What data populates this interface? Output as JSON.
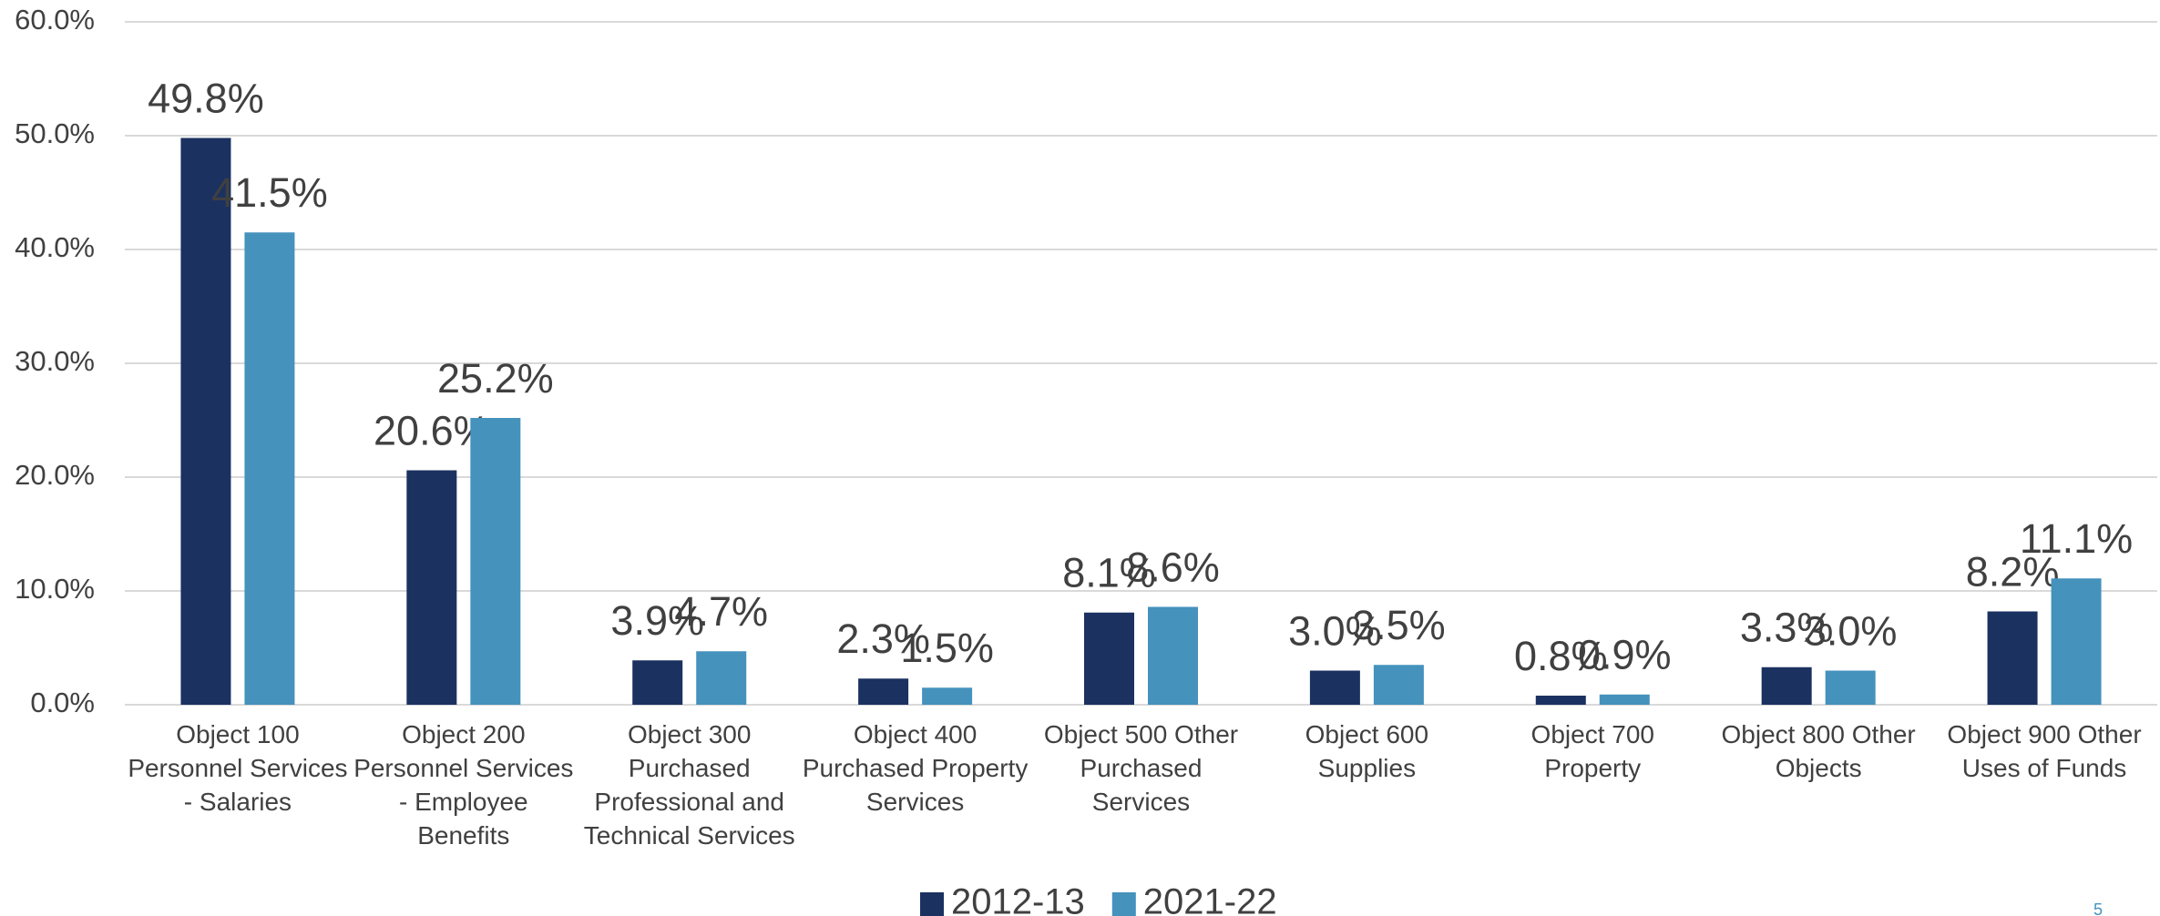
{
  "chart_data": {
    "type": "bar",
    "categories": [
      "Object 100 Personnel Services - Salaries",
      "Object 200 Personnel Services - Employee Benefits",
      "Object 300 Purchased Professional and Technical Services",
      "Object 400 Purchased Property Services",
      "Object 500 Other Purchased Services",
      "Object 600 Supplies",
      "Object 700 Property",
      "Object 800 Other Objects",
      "Object 900 Other Uses of Funds"
    ],
    "series": [
      {
        "name": "2012-13",
        "color": "#1b3160",
        "values": [
          49.8,
          20.6,
          3.9,
          2.3,
          8.1,
          3.0,
          0.8,
          3.3,
          8.2
        ],
        "value_labels": [
          "49.8%",
          "20.6%",
          "3.9%",
          "2.3%",
          "8.1%",
          "3.0%",
          "0.8%",
          "3.3%",
          "8.2%"
        ]
      },
      {
        "name": "2021-22",
        "color": "#4592bd",
        "values": [
          41.5,
          25.2,
          4.7,
          1.5,
          8.6,
          3.5,
          0.9,
          3.0,
          11.1
        ],
        "value_labels": [
          "41.5%",
          "25.2%",
          "4.7%",
          "1.5%",
          "8.6%",
          "3.5%",
          "0.9%",
          "3.0%",
          "11.1%"
        ]
      }
    ],
    "ylim": [
      0,
      60
    ],
    "yticks": [
      {
        "value": 0,
        "label": "0.0%"
      },
      {
        "value": 10,
        "label": "10.0%"
      },
      {
        "value": 20,
        "label": "20.0%"
      },
      {
        "value": 30,
        "label": "30.0%"
      },
      {
        "value": 40,
        "label": "40.0%"
      },
      {
        "value": 50,
        "label": "50.0%"
      },
      {
        "value": 60,
        "label": "60.0%"
      }
    ],
    "grid": true,
    "legend": "bottom"
  },
  "page_number": "5"
}
